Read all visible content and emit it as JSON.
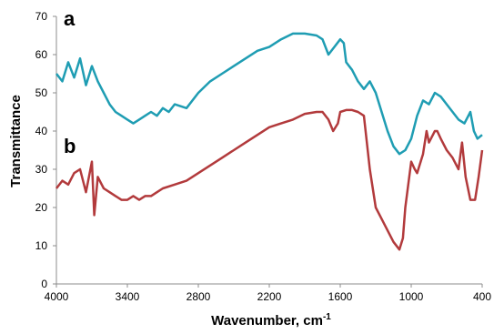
{
  "chart_data": {
    "type": "line",
    "x_label": "Wavenumber, cm",
    "x_label_superscript": "-1",
    "y_label": "Transmittance",
    "xlim": [
      4000,
      400
    ],
    "xticks": [
      4000,
      3400,
      2800,
      2200,
      1600,
      1000,
      400
    ],
    "ylim": [
      0,
      70
    ],
    "yticks": [
      0,
      10,
      20,
      30,
      40,
      50,
      60,
      70
    ],
    "grid": false,
    "annotations": [
      "a",
      "b"
    ],
    "series": [
      {
        "name": "a",
        "color": "#1f9db3",
        "x": [
          4000,
          3950,
          3900,
          3850,
          3800,
          3750,
          3700,
          3650,
          3600,
          3550,
          3500,
          3450,
          3400,
          3350,
          3300,
          3250,
          3200,
          3150,
          3100,
          3050,
          3000,
          2900,
          2800,
          2700,
          2600,
          2500,
          2400,
          2300,
          2200,
          2100,
          2000,
          1900,
          1800,
          1750,
          1700,
          1650,
          1600,
          1570,
          1550,
          1500,
          1450,
          1400,
          1350,
          1300,
          1250,
          1200,
          1150,
          1100,
          1050,
          1000,
          950,
          900,
          850,
          800,
          750,
          700,
          650,
          600,
          550,
          500,
          470,
          440,
          400
        ],
        "values": [
          55,
          53,
          58,
          54,
          59,
          52,
          57,
          53,
          50,
          47,
          45,
          44,
          43,
          42,
          43,
          44,
          45,
          44,
          46,
          45,
          47,
          46,
          50,
          53,
          55,
          57,
          59,
          61,
          62,
          64,
          65.5,
          65.5,
          65,
          64,
          60,
          62,
          64,
          63,
          58,
          56,
          53,
          51,
          53,
          50,
          45,
          40,
          36,
          34,
          35,
          38,
          44,
          48,
          47,
          50,
          49,
          47,
          45,
          43,
          42,
          45,
          40,
          38,
          39
        ]
      },
      {
        "name": "b",
        "color": "#b23a3c",
        "x": [
          4000,
          3950,
          3900,
          3850,
          3800,
          3750,
          3700,
          3680,
          3650,
          3600,
          3550,
          3500,
          3450,
          3400,
          3350,
          3300,
          3250,
          3200,
          3150,
          3100,
          3000,
          2900,
          2800,
          2700,
          2600,
          2500,
          2400,
          2300,
          2200,
          2100,
          2000,
          1900,
          1800,
          1750,
          1700,
          1660,
          1620,
          1600,
          1550,
          1500,
          1450,
          1400,
          1350,
          1300,
          1250,
          1200,
          1150,
          1100,
          1070,
          1050,
          1000,
          970,
          950,
          900,
          870,
          850,
          800,
          780,
          750,
          700,
          650,
          600,
          570,
          540,
          500,
          460,
          430,
          400
        ],
        "values": [
          25,
          27,
          26,
          29,
          30,
          24,
          32,
          18,
          28,
          25,
          24,
          23,
          22,
          22,
          23,
          22,
          23,
          23,
          24,
          25,
          26,
          27,
          29,
          31,
          33,
          35,
          37,
          39,
          41,
          42,
          43,
          44.5,
          45,
          45,
          43,
          40,
          42,
          45,
          45.5,
          45.5,
          45,
          44,
          30,
          20,
          17,
          14,
          11,
          9,
          12,
          20,
          32,
          30,
          29,
          34,
          40,
          37,
          40,
          40,
          38,
          35,
          33,
          30,
          37,
          28,
          22,
          22,
          28,
          35
        ]
      }
    ]
  }
}
